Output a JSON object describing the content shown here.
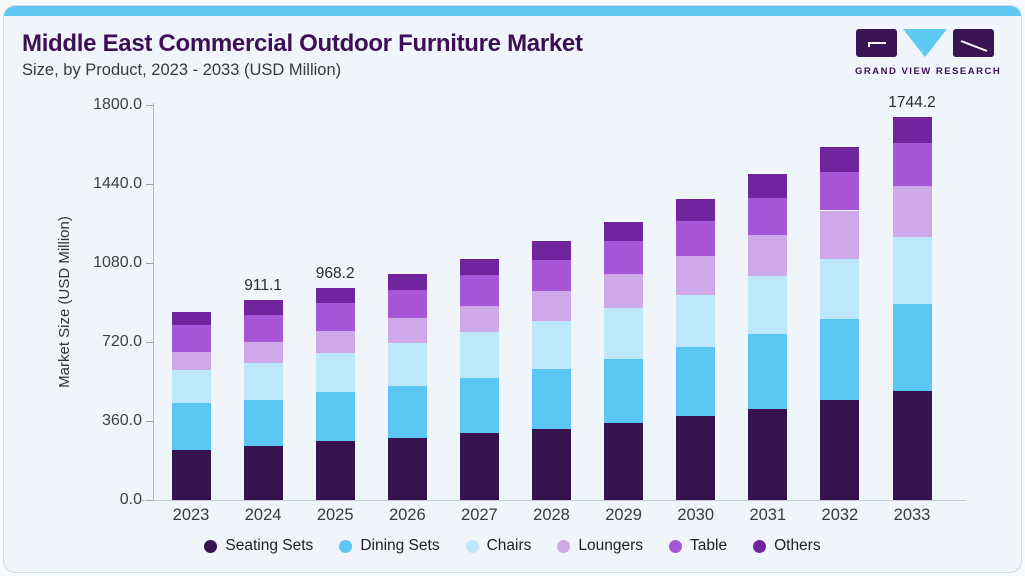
{
  "header": {
    "title": "Middle East Commercial Outdoor Furniture Market",
    "subtitle": "Size, by Product, 2023 - 2033 (USD Million)",
    "logo_text": "GRAND VIEW RESEARCH"
  },
  "colors": {
    "top_strip_blue": "#5FC8F2",
    "title_purple": "#3D1056",
    "card_background": "#EFF5FA",
    "logo_purple": "#3A1453",
    "logo_blue": "#5EC9F3",
    "axis_text": "#3F3F3F"
  },
  "chart_data": {
    "type": "bar",
    "stacked": true,
    "title": "Middle East Commercial Outdoor Furniture Market Size, by Product, 2023 - 2033 (USD Million)",
    "xlabel": "",
    "ylabel": "Market Size (USD Million)",
    "ylim": [
      0,
      1800
    ],
    "yticks": [
      0,
      360,
      720,
      1080,
      1440,
      1800
    ],
    "ytick_labels": [
      "0.0",
      "360.0",
      "720.0",
      "1080.0",
      "1440.0",
      "1800.0"
    ],
    "grid": false,
    "legend_position": "bottom",
    "categories": [
      "2023",
      "2024",
      "2025",
      "2026",
      "2027",
      "2028",
      "2029",
      "2030",
      "2031",
      "2032",
      "2033"
    ],
    "series": [
      {
        "name": "Seating Sets",
        "color": "#36124F",
        "values": [
          228.7,
          244.0,
          267.1,
          282.8,
          305.9,
          325.7,
          352.1,
          382.6,
          414.9,
          456.5,
          497.5
        ]
      },
      {
        "name": "Dining Sets",
        "color": "#5BC6F3",
        "values": [
          212.5,
          212.5,
          223.6,
          235.6,
          250.9,
          272.6,
          289.2,
          312.8,
          341.9,
          366.9,
          394.0
        ]
      },
      {
        "name": "Chairs",
        "color": "#BDE7FA",
        "values": [
          149.2,
          169.6,
          177.2,
          195.4,
          207.9,
          215.8,
          235.6,
          238.9,
          265.2,
          275.4,
          307.5
        ]
      },
      {
        "name": "Loungers",
        "color": "#CFA8EA",
        "values": [
          85.0,
          95.6,
          100.3,
          116.9,
          118.7,
          138.6,
          152.5,
          177.0,
          184.8,
          220.4,
          231.0
        ]
      },
      {
        "name": "Table",
        "color": "#A557D8",
        "values": [
          120.1,
          120.1,
          127.5,
          126.6,
          143.2,
          143.2,
          151.1,
          161.7,
          169.1,
          177.0,
          198.7
        ]
      },
      {
        "name": "Others",
        "color": "#70249E",
        "values": [
          61.5,
          69.3,
          72.5,
          73.9,
          73.9,
          84.6,
          86.4,
          97.0,
          108.1,
          110.9,
          115.5
        ]
      }
    ],
    "bar_labels": [
      "",
      "911.1",
      "968.2",
      "",
      "",
      "",
      "",
      "",
      "",
      "",
      "1744.2"
    ]
  }
}
